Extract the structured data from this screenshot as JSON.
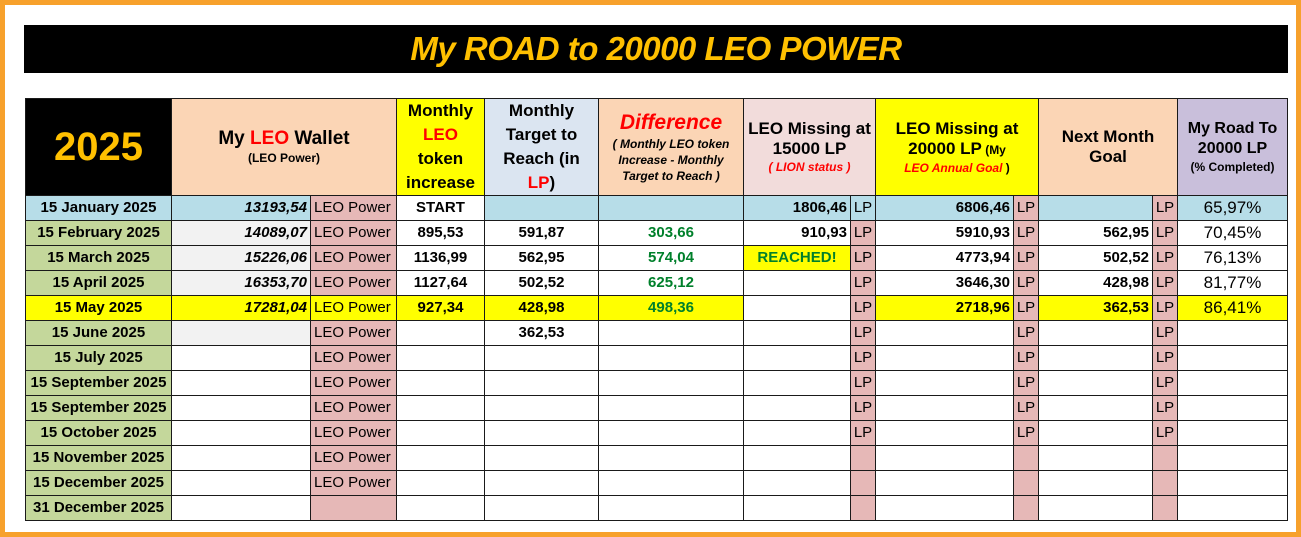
{
  "title": "My ROAD to 20000 LEO POWER",
  "headers": {
    "year": "2025",
    "wallet_prefix": "My ",
    "wallet_leo": "LEO",
    "wallet_suffix": " Wallet",
    "wallet_sub": "(LEO Power)",
    "monthly_inc_1": "Monthly",
    "monthly_inc_2": "LEO",
    "monthly_inc_3": "token increase",
    "target_1": "Monthly Target to Reach (in ",
    "target_lp": "LP",
    "target_2": ")",
    "diff_title": "Difference",
    "diff_sub": "( Monthly LEO token Increase - Monthly Target to Reach )",
    "miss15_1": "LEO Missing at 15000 LP",
    "miss15_sub": "( LION status )",
    "miss20_1": "LEO Missing at 20000 LP",
    "miss20_2": " (My ",
    "miss20_goal": "LEO Annual Goal",
    "miss20_3": " )",
    "next_goal": "Next Month Goal",
    "road_1": "My Road To 20000 LP",
    "road_sub": "(% Completed)"
  },
  "unit_leo_power": "LEO Power",
  "unit_lp": "LP",
  "rows": [
    {
      "date": "15 January 2025",
      "wallet": "13193,54",
      "increase": "START",
      "target": "",
      "diff": "",
      "miss15": "1806,46",
      "miss20": "6806,46",
      "next": "",
      "pct": "65,97%"
    },
    {
      "date": "15 February 2025",
      "wallet": "14089,07",
      "increase": "895,53",
      "target": "591,87",
      "diff": "303,66",
      "miss15": "910,93",
      "miss20": "5910,93",
      "next": "562,95",
      "pct": "70,45%"
    },
    {
      "date": "15 March 2025",
      "wallet": "15226,06",
      "increase": "1136,99",
      "target": "562,95",
      "diff": "574,04",
      "miss15": "REACHED!",
      "miss20": "4773,94",
      "next": "502,52",
      "pct": "76,13%"
    },
    {
      "date": "15 April 2025",
      "wallet": "16353,70",
      "increase": "1127,64",
      "target": "502,52",
      "diff": "625,12",
      "miss15": "",
      "miss20": "3646,30",
      "next": "428,98",
      "pct": "81,77%"
    },
    {
      "date": "15 May 2025",
      "wallet": "17281,04",
      "increase": "927,34",
      "target": "428,98",
      "diff": "498,36",
      "miss15": "",
      "miss20": "2718,96",
      "next": "362,53",
      "pct": "86,41%"
    },
    {
      "date": "15 June 2025",
      "wallet": "",
      "increase": "",
      "target": "362,53",
      "diff": "",
      "miss15": "",
      "miss20": "",
      "next": "",
      "pct": ""
    },
    {
      "date": "15 July 2025",
      "wallet": "",
      "increase": "",
      "target": "",
      "diff": "",
      "miss15": "",
      "miss20": "",
      "next": "",
      "pct": ""
    },
    {
      "date": "15 September 2025",
      "wallet": "",
      "increase": "",
      "target": "",
      "diff": "",
      "miss15": "",
      "miss20": "",
      "next": "",
      "pct": ""
    },
    {
      "date": "15 September 2025",
      "wallet": "",
      "increase": "",
      "target": "",
      "diff": "",
      "miss15": "",
      "miss20": "",
      "next": "",
      "pct": ""
    },
    {
      "date": "15 October 2025",
      "wallet": "",
      "increase": "",
      "target": "",
      "diff": "",
      "miss15": "",
      "miss20": "",
      "next": "",
      "pct": ""
    },
    {
      "date": "15 November 2025",
      "wallet": "",
      "increase": "",
      "target": "",
      "diff": "",
      "miss15": "",
      "miss20": "",
      "next": "",
      "pct": ""
    },
    {
      "date": "15 December 2025",
      "wallet": "",
      "increase": "",
      "target": "",
      "diff": "",
      "miss15": "",
      "miss20": "",
      "next": "",
      "pct": ""
    },
    {
      "date": "31 December 2025",
      "wallet": "",
      "increase": "",
      "target": "",
      "diff": "",
      "miss15": "",
      "miss20": "",
      "next": "",
      "pct": ""
    }
  ]
}
